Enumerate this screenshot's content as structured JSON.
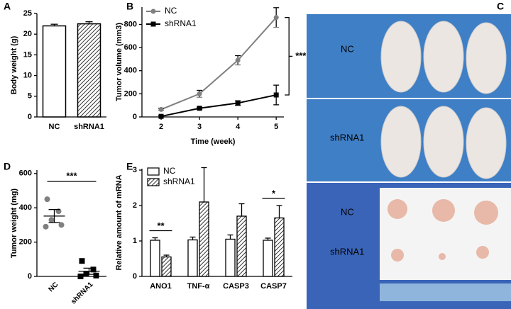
{
  "chart_data": [
    {
      "panel": "A",
      "type": "bar",
      "ylabel": "Body weight (g)",
      "categories": [
        "NC",
        "shRNA1"
      ],
      "values": [
        22,
        22.5
      ],
      "errors": [
        0.4,
        0.5
      ],
      "color": "#000000",
      "ylim": [
        0,
        25
      ],
      "yticks": [
        0,
        5,
        10,
        15,
        20,
        25
      ]
    },
    {
      "panel": "B",
      "type": "line",
      "xlabel": "Time (week)",
      "ylabel": "Tumor volume (mm3)",
      "x": [
        2,
        3,
        4,
        5
      ],
      "xlim": [
        1.5,
        5.2
      ],
      "xticks": [
        2,
        3,
        4,
        5
      ],
      "ylim": [
        0,
        950
      ],
      "yticks": [
        0,
        200,
        400,
        600,
        800
      ],
      "series": [
        {
          "name": "NC",
          "color": "#808080",
          "values": [
            65,
            200,
            490,
            860
          ],
          "errors": [
            10,
            30,
            40,
            85
          ]
        },
        {
          "name": "shRNA1",
          "color": "#000000",
          "values": [
            5,
            75,
            120,
            190
          ],
          "errors": [
            5,
            10,
            20,
            85
          ]
        }
      ],
      "annotations": [
        "***"
      ]
    },
    {
      "panel": "D",
      "type": "dot",
      "ylabel": "Tumor weight (mg)",
      "categories": [
        "NC",
        "shRNA1"
      ],
      "ylim": [
        0,
        620
      ],
      "yticks": [
        0,
        200,
        400,
        600
      ],
      "series": [
        {
          "name": "NC",
          "color": "#808080",
          "points": [
            450,
            380,
            330,
            300,
            290
          ],
          "mean": 352,
          "error": 38
        },
        {
          "name": "shRNA1",
          "color": "#000000",
          "points": [
            90,
            40,
            15,
            5,
            0
          ],
          "mean": 30,
          "error": 18
        }
      ],
      "annotations": [
        "***"
      ]
    },
    {
      "panel": "E",
      "type": "groupbar",
      "ylabel": "Relative amount of mRNA",
      "categories": [
        "ANO1",
        "TNF-α",
        "CASP3",
        "CASP7"
      ],
      "ylim": [
        0,
        3.04
      ],
      "yticks": [
        0,
        1,
        2,
        3
      ],
      "series": [
        {
          "name": "NC",
          "color": "#000000",
          "values": [
            1.02,
            1.03,
            1.05,
            1.02
          ],
          "errors": [
            0.07,
            0.08,
            0.12,
            0.06
          ]
        },
        {
          "name": "shRNA1",
          "color": "#000000",
          "values": [
            0.55,
            2.1,
            1.7,
            1.65
          ],
          "errors": [
            0.05,
            0.97,
            0.35,
            0.35
          ]
        }
      ],
      "annotations": [
        "**",
        "*"
      ]
    }
  ],
  "photo_panel": {
    "panel": "C",
    "labels": [
      "NC",
      "shRNA1",
      "NC",
      "shRNA1"
    ]
  }
}
